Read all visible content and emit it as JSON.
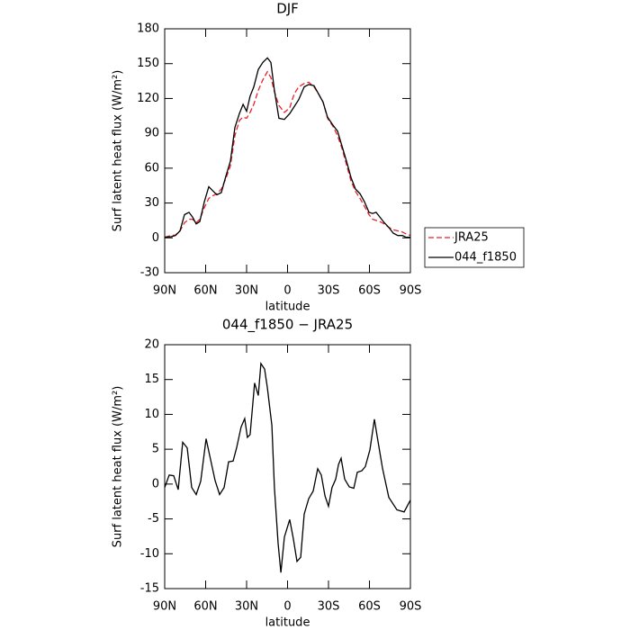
{
  "chart_data": [
    {
      "type": "line",
      "title": "DJF",
      "xlabel": "latitude",
      "ylabel": "Surf latent heat flux (W/m²)",
      "x": [
        90,
        85.4,
        82.1,
        78.8,
        75.5,
        72.2,
        69.6,
        66.9,
        64.3,
        61.0,
        57.7,
        55.1,
        51.8,
        48.5,
        45.2,
        41.9,
        38.6,
        35.3,
        32.6,
        30.0,
        27.4,
        24.7,
        21.4,
        18.1,
        14.8,
        12.2,
        9.6,
        6.3,
        2.3,
        -1.6,
        -4.9,
        -8.2,
        -12.2,
        -15.5,
        -19.4,
        -22.7,
        -26.0,
        -29.3,
        -33.3,
        -36.6,
        -39.9,
        -43.2,
        -46.5,
        -49.8,
        -53.1,
        -56.4,
        -59.7,
        -62.3,
        -64.9,
        -67.6,
        -70.9,
        -74.2,
        -77.5,
        -80.8,
        -84.1,
        -86.7,
        -90
      ],
      "series": [
        {
          "name": "JRA25",
          "color": "#e8202a",
          "dashed": true,
          "values": [
            0.5,
            2,
            2.5,
            6,
            13,
            16,
            16,
            13,
            16,
            26,
            34,
            36,
            38,
            42,
            51,
            62,
            88,
            101,
            104,
            103,
            108,
            115,
            127,
            136,
            143,
            138,
            126,
            114,
            108,
            112,
            124,
            130,
            133,
            134,
            130,
            124,
            117,
            103,
            96,
            88,
            77,
            63,
            49,
            40,
            34,
            27,
            20,
            16,
            15,
            14,
            12,
            9,
            7,
            6,
            5,
            3.5,
            2
          ]
        },
        {
          "name": "044_f1850",
          "color": "#000000",
          "dashed": false,
          "values": [
            0.5,
            1,
            2,
            6,
            20,
            22,
            18,
            12,
            14,
            31,
            44,
            41,
            37,
            39,
            53,
            66,
            95,
            107,
            115,
            109,
            122,
            130,
            145,
            151,
            155,
            151,
            127,
            103,
            102,
            107,
            113,
            119,
            130,
            132,
            131,
            124,
            117,
            104,
            97,
            92,
            79,
            66,
            52,
            42,
            38,
            31,
            22,
            21,
            22,
            18,
            13,
            9,
            4,
            2,
            2,
            0.5,
            0.5
          ]
        }
      ],
      "xlim": [
        90,
        -90
      ],
      "xticks": [
        {
          "value": 90,
          "label": "90N"
        },
        {
          "value": 60,
          "label": "60N"
        },
        {
          "value": 30,
          "label": "30N"
        },
        0,
        {
          "value": -30,
          "label": "30S"
        },
        {
          "value": -60,
          "label": "60S"
        },
        {
          "value": -90,
          "label": "90S"
        }
      ],
      "ylim": [
        -30,
        180
      ],
      "yticks": [
        -30,
        0,
        30,
        60,
        90,
        120,
        150,
        180
      ],
      "legend": "right"
    },
    {
      "type": "line",
      "title": "044_f1850 − JRA25",
      "xlabel": "latitude",
      "ylabel": "Surf latent heat flux (W/m²)",
      "color": "#000000",
      "x": [
        90,
        86.7,
        83.4,
        80.1,
        76.8,
        73.5,
        70.2,
        66.9,
        63.6,
        59.7,
        56.4,
        53.1,
        49.8,
        46.5,
        43.2,
        39.9,
        37.3,
        34.0,
        31.4,
        29.4,
        27.4,
        24.1,
        21.4,
        19.5,
        16.8,
        14.8,
        11.5,
        9.6,
        6.9,
        4.9,
        2.3,
        -1.6,
        -4.3,
        -6.9,
        -9.6,
        -12.2,
        -15.5,
        -18.8,
        -22.1,
        -24.7,
        -27.4,
        -30.0,
        -32.6,
        -35.3,
        -37.3,
        -39.2,
        -41.9,
        -45.2,
        -48.5,
        -51.1,
        -54.4,
        -57.0,
        -60.3,
        -63.6,
        -65.6,
        -69.6,
        -74.2,
        -80.1,
        -85.4,
        -90
      ],
      "values": [
        -0.5,
        1.3,
        1.2,
        -0.8,
        6.0,
        5.2,
        -0.5,
        -1.5,
        0.4,
        6.5,
        3.5,
        0.5,
        -1.5,
        -0.5,
        3.2,
        3.3,
        5.2,
        8.2,
        9.4,
        6.7,
        7.1,
        14.5,
        12.7,
        17.3,
        16.5,
        13.8,
        8.4,
        -0.5,
        -8.5,
        -12.7,
        -7.6,
        -5.1,
        -7.9,
        -11.1,
        -10.5,
        -4.3,
        -2.1,
        -1.0,
        2.2,
        1.3,
        -1.7,
        -3.2,
        -0.5,
        0.7,
        2.8,
        3.7,
        0.7,
        -0.4,
        -0.6,
        1.7,
        1.9,
        2.5,
        4.9,
        9.3,
        6.9,
        2.2,
        -1.9,
        -3.7,
        -4.0,
        -2.3
      ],
      "xlim": [
        90,
        -90
      ],
      "xticks": [
        {
          "value": 90,
          "label": "90N"
        },
        {
          "value": 60,
          "label": "60N"
        },
        {
          "value": 30,
          "label": "30N"
        },
        0,
        {
          "value": -30,
          "label": "30S"
        },
        {
          "value": -60,
          "label": "60S"
        },
        {
          "value": -90,
          "label": "90S"
        }
      ],
      "ylim": [
        -15,
        20
      ],
      "yticks": [
        -15,
        -10,
        -5,
        0,
        5,
        10,
        15,
        20
      ]
    }
  ]
}
